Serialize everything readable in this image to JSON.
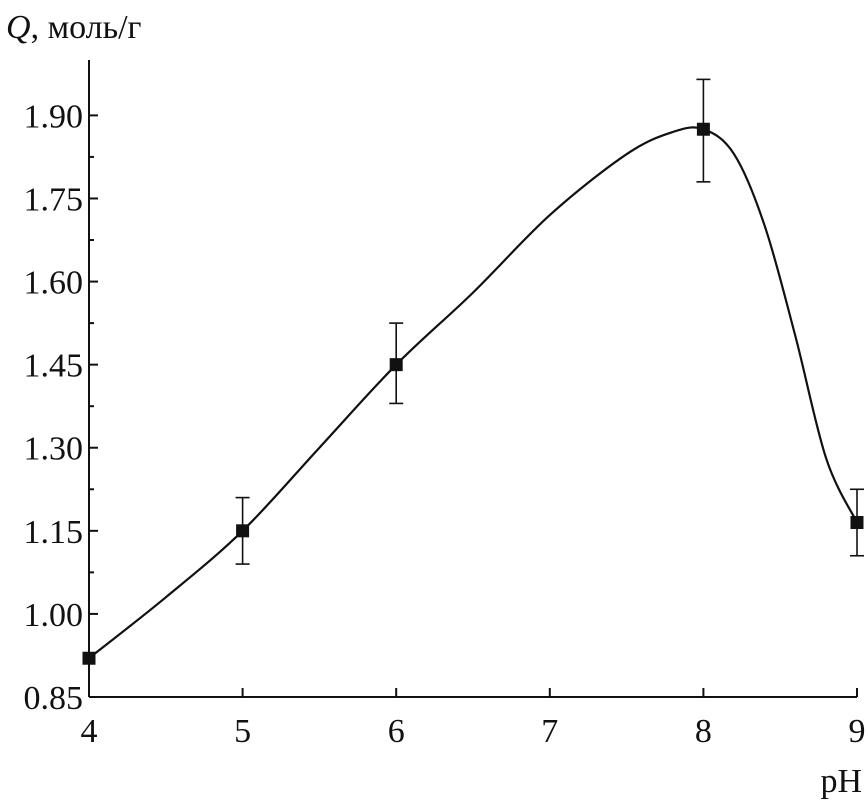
{
  "chart_data": {
    "type": "line",
    "xlabel": "pH",
    "ylabel_symbol": "Q",
    "ylabel_unit": ", моль/г",
    "xlim": [
      4,
      9
    ],
    "ylim": [
      0.85,
      2.0
    ],
    "x_ticks": [
      4,
      5,
      6,
      7,
      8,
      9
    ],
    "x_tick_labels": [
      "4",
      "5",
      "6",
      "7",
      "8",
      "9"
    ],
    "y_ticks": [
      0.85,
      1.0,
      1.15,
      1.3,
      1.45,
      1.6,
      1.75,
      1.9
    ],
    "y_tick_labels": [
      "0.85",
      "1.00",
      "1.15",
      "1.30",
      "1.45",
      "1.60",
      "1.75",
      "1.90"
    ],
    "grid": false,
    "legend": false,
    "colors": {
      "line": "#111111",
      "marker": "#111111"
    },
    "series": [
      {
        "x": [
          4,
          5,
          6,
          8,
          9
        ],
        "y": [
          0.92,
          1.15,
          1.45,
          1.875,
          1.165
        ],
        "error_low": [
          0.92,
          1.09,
          1.38,
          1.78,
          1.105
        ],
        "error_high": [
          0.92,
          1.21,
          1.525,
          1.965,
          1.225
        ],
        "smooth_curve": [
          [
            4,
            0.92
          ],
          [
            4.5,
            1.03
          ],
          [
            5,
            1.15
          ],
          [
            5.5,
            1.3
          ],
          [
            6,
            1.45
          ],
          [
            6.5,
            1.58
          ],
          [
            7,
            1.72
          ],
          [
            7.5,
            1.83
          ],
          [
            7.8,
            1.87
          ],
          [
            8,
            1.875
          ],
          [
            8.2,
            1.83
          ],
          [
            8.4,
            1.7
          ],
          [
            8.6,
            1.5
          ],
          [
            8.8,
            1.28
          ],
          [
            9,
            1.165
          ]
        ]
      }
    ]
  }
}
